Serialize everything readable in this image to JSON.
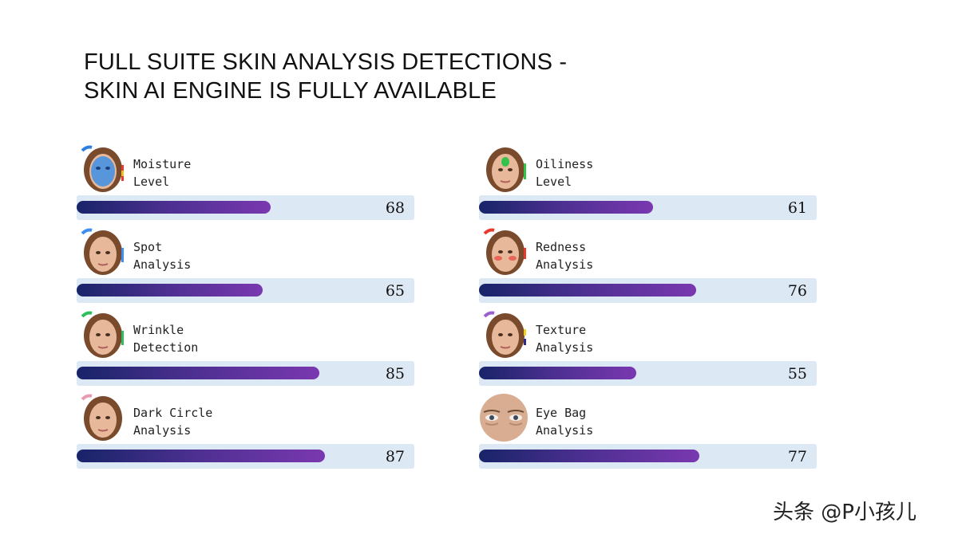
{
  "title": {
    "line1": "FULL SUITE SKIN ANALYSIS DETECTIONS -",
    "line2": "SKIN AI ENGINE IS FULLY AVAILABLE"
  },
  "metrics": [
    {
      "line1": "Moisture",
      "line2": "Level",
      "score": "68",
      "score_value": 68,
      "icon": "moisture-face-icon",
      "accent": "#2f7fe0"
    },
    {
      "line1": "Oiliness",
      "line2": "Level",
      "score": "61",
      "score_value": 61,
      "icon": "oiliness-face-icon",
      "accent": "#33c24a"
    },
    {
      "line1": "Spot",
      "line2": "Analysis",
      "score": "65",
      "score_value": 65,
      "icon": "spot-face-icon",
      "accent": "#3d8ef0"
    },
    {
      "line1": "Redness",
      "line2": "Analysis",
      "score": "76",
      "score_value": 76,
      "icon": "redness-face-icon",
      "accent": "#e8392f"
    },
    {
      "line1": "Wrinkle",
      "line2": "Detection",
      "score": "85",
      "score_value": 85,
      "icon": "wrinkle-face-icon",
      "accent": "#2fbf5a"
    },
    {
      "line1": "Texture",
      "line2": "Analysis",
      "score": "55",
      "score_value": 55,
      "icon": "texture-face-icon",
      "accent": "#9a5fd0"
    },
    {
      "line1": "Dark Circle",
      "line2": "Analysis",
      "score": "87",
      "score_value": 87,
      "icon": "dark-circle-face-icon",
      "accent": "#e89ab0"
    },
    {
      "line1": "Eye Bag",
      "line2": "Analysis",
      "score": "77",
      "score_value": 77,
      "icon": "eye-bag-closeup-icon",
      "accent": "#c9a58a"
    }
  ],
  "watermark": "头条 @P小孩儿"
}
